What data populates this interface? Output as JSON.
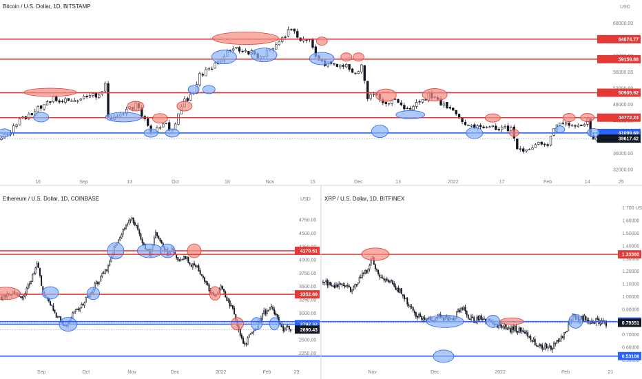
{
  "colors": {
    "resistance": "#e53935",
    "support": "#2962ff",
    "up": "#ffffff",
    "down": "#131722",
    "wick": "#131722",
    "grid": "#f0f3fa",
    "axis_text": "#787b86",
    "last_price": "#131722",
    "marker_red_fill": "#f28b82",
    "marker_blue_fill": "#8ab4f8"
  },
  "chart_data": [
    {
      "id": "btc",
      "type": "candlestick",
      "title": "Bitcoin / U.S. Dollar, 1D, BITSTAMP",
      "currency": "USD",
      "ylim": [
        31000,
        71000
      ],
      "x_days": 195,
      "x_ticks": [
        {
          "d": 12,
          "label": "16"
        },
        {
          "d": 27,
          "label": "Sep"
        },
        {
          "d": 42,
          "label": "13"
        },
        {
          "d": 57,
          "label": "Oct"
        },
        {
          "d": 74,
          "label": "18"
        },
        {
          "d": 88,
          "label": "Nov"
        },
        {
          "d": 102,
          "label": "15"
        },
        {
          "d": 117,
          "label": "Dec"
        },
        {
          "d": 130,
          "label": "13"
        },
        {
          "d": 148,
          "label": "2022"
        },
        {
          "d": 164,
          "label": "17"
        },
        {
          "d": 179,
          "label": "Feb"
        },
        {
          "d": 192,
          "label": "14"
        },
        {
          "d": 203,
          "label": "25"
        }
      ],
      "y_ticks": [
        "68000.00",
        "64000.00",
        "60000.00",
        "56000.00",
        "52000.00",
        "48000.00",
        "44000.00",
        "40000.00",
        "36000.00",
        "32000.00"
      ],
      "levels": [
        {
          "value": 64074.77,
          "label": "64074.77",
          "kind": "resistance"
        },
        {
          "value": 59159.88,
          "label": "59159.88",
          "kind": "resistance"
        },
        {
          "value": 50905.92,
          "label": "50905.92",
          "kind": "resistance"
        },
        {
          "value": 44772.24,
          "label": "44772.24",
          "kind": "resistance"
        },
        {
          "value": 41009.69,
          "label": "41009.69",
          "kind": "support"
        }
      ],
      "last_price": {
        "value": 39617.42,
        "label": "39617.42"
      },
      "anchors": [
        [
          0,
          39500
        ],
        [
          6,
          44000
        ],
        [
          12,
          47000
        ],
        [
          17,
          49700
        ],
        [
          22,
          48500
        ],
        [
          27,
          49800
        ],
        [
          31,
          50200
        ],
        [
          34,
          52500
        ],
        [
          35,
          44500
        ],
        [
          39,
          45300
        ],
        [
          44,
          47800
        ],
        [
          47,
          44000
        ],
        [
          49,
          40800
        ],
        [
          53,
          43500
        ],
        [
          56,
          41500
        ],
        [
          59,
          48000
        ],
        [
          63,
          51000
        ],
        [
          65,
          55000
        ],
        [
          70,
          57500
        ],
        [
          74,
          61500
        ],
        [
          77,
          62000
        ],
        [
          81,
          61000
        ],
        [
          84,
          60000
        ],
        [
          88,
          61000
        ],
        [
          92,
          64500
        ],
        [
          95,
          66500
        ],
        [
          98,
          64200
        ],
        [
          101,
          63600
        ],
        [
          104,
          58200
        ],
        [
          108,
          58000
        ],
        [
          112,
          58000
        ],
        [
          116,
          55800
        ],
        [
          118,
          57500
        ],
        [
          120,
          49300
        ],
        [
          122,
          50500
        ],
        [
          126,
          48500
        ],
        [
          129,
          49000
        ],
        [
          132,
          46500
        ],
        [
          136,
          48000
        ],
        [
          140,
          50500
        ],
        [
          145,
          47800
        ],
        [
          148,
          46500
        ],
        [
          152,
          42800
        ],
        [
          156,
          42200
        ],
        [
          160,
          43000
        ],
        [
          164,
          41800
        ],
        [
          167,
          42100
        ],
        [
          169,
          36800
        ],
        [
          172,
          37200
        ],
        [
          176,
          38500
        ],
        [
          179,
          38500
        ],
        [
          181,
          41500
        ],
        [
          184,
          44000
        ],
        [
          187,
          43000
        ],
        [
          189,
          42300
        ],
        [
          192,
          43900
        ],
        [
          193,
          40000
        ],
        [
          195,
          39617
        ]
      ],
      "markers": [
        {
          "d": 1,
          "v": 41009,
          "rx": 9,
          "ry": 6,
          "kind": "support"
        },
        {
          "d": 16,
          "v": 51000,
          "rx": 38,
          "ry": 6,
          "kind": "resistance"
        },
        {
          "d": 13,
          "v": 44900,
          "rx": 11,
          "ry": 7,
          "kind": "support"
        },
        {
          "d": 40,
          "v": 44900,
          "rx": 26,
          "ry": 7,
          "kind": "support"
        },
        {
          "d": 44,
          "v": 47600,
          "rx": 12,
          "ry": 7,
          "kind": "resistance"
        },
        {
          "d": 49,
          "v": 41000,
          "rx": 10,
          "ry": 6,
          "kind": "support"
        },
        {
          "d": 52,
          "v": 44600,
          "rx": 11,
          "ry": 7,
          "kind": "resistance"
        },
        {
          "d": 56,
          "v": 41000,
          "rx": 10,
          "ry": 6,
          "kind": "support"
        },
        {
          "d": 60,
          "v": 47600,
          "rx": 11,
          "ry": 7,
          "kind": "resistance"
        },
        {
          "d": 63,
          "v": 51700,
          "rx": 8,
          "ry": 6,
          "kind": "support"
        },
        {
          "d": 68,
          "v": 51700,
          "rx": 9,
          "ry": 6,
          "kind": "support"
        },
        {
          "d": 73,
          "v": 59700,
          "rx": 18,
          "ry": 10,
          "kind": "support"
        },
        {
          "d": 80,
          "v": 64300,
          "rx": 48,
          "ry": 9,
          "kind": "resistance"
        },
        {
          "d": 86,
          "v": 60200,
          "rx": 19,
          "ry": 10,
          "kind": "support"
        },
        {
          "d": 105,
          "v": 63600,
          "rx": 8,
          "ry": 6,
          "kind": "resistance"
        },
        {
          "d": 105,
          "v": 59300,
          "rx": 18,
          "ry": 9,
          "kind": "support"
        },
        {
          "d": 113,
          "v": 59700,
          "rx": 8,
          "ry": 6,
          "kind": "resistance"
        },
        {
          "d": 117,
          "v": 59700,
          "rx": 8,
          "ry": 6,
          "kind": "resistance"
        },
        {
          "d": 124,
          "v": 41400,
          "rx": 12,
          "ry": 9,
          "kind": "support"
        },
        {
          "d": 126,
          "v": 50300,
          "rx": 15,
          "ry": 9,
          "kind": "resistance"
        },
        {
          "d": 134,
          "v": 45500,
          "rx": 21,
          "ry": 6,
          "kind": "support"
        },
        {
          "d": 142,
          "v": 50400,
          "rx": 18,
          "ry": 9,
          "kind": "resistance"
        },
        {
          "d": 155,
          "v": 41000,
          "rx": 12,
          "ry": 8,
          "kind": "support"
        },
        {
          "d": 161,
          "v": 44700,
          "rx": 11,
          "ry": 6,
          "kind": "resistance"
        },
        {
          "d": 168,
          "v": 41000,
          "rx": 7,
          "ry": 5,
          "kind": "resistance"
        },
        {
          "d": 183,
          "v": 41900,
          "rx": 7,
          "ry": 5,
          "kind": "support"
        },
        {
          "d": 186,
          "v": 44800,
          "rx": 9,
          "ry": 6,
          "kind": "resistance"
        },
        {
          "d": 192,
          "v": 44800,
          "rx": 10,
          "ry": 6,
          "kind": "resistance"
        },
        {
          "d": 194,
          "v": 41100,
          "rx": 9,
          "ry": 6,
          "kind": "support"
        }
      ]
    },
    {
      "id": "eth",
      "type": "candlestick",
      "title": "Ethereum / U.S. Dollar, 1D, COINBASE",
      "currency": "USD",
      "ylim": [
        2150,
        5050
      ],
      "x_days": 195,
      "x_ticks": [
        {
          "d": 27,
          "label": "Sep"
        },
        {
          "d": 57,
          "label": "Oct"
        },
        {
          "d": 88,
          "label": "Nov"
        },
        {
          "d": 117,
          "label": "Dec"
        },
        {
          "d": 148,
          "label": "2022"
        },
        {
          "d": 179,
          "label": "Feb"
        },
        {
          "d": 199,
          "label": "23"
        }
      ],
      "y_ticks": [
        "4750.00",
        "4500.00",
        "4250.00",
        "4000.00",
        "3750.00",
        "3500.00",
        "3250.00",
        "3000.00",
        "2750.00",
        "2500.00",
        "2250.00"
      ],
      "levels": [
        {
          "value": 4170.51,
          "label": "4170.51",
          "kind": "resistance"
        },
        {
          "value": 3352.69,
          "label": "3352.69",
          "kind": "resistance"
        },
        {
          "value": 2792.32,
          "label": "2792.32",
          "kind": "support"
        }
      ],
      "last_price": {
        "value": 2690.43,
        "label": "2690.43"
      },
      "anchors": [
        [
          0,
          3300
        ],
        [
          8,
          3400
        ],
        [
          14,
          3300
        ],
        [
          20,
          3600
        ],
        [
          24,
          3950
        ],
        [
          28,
          3400
        ],
        [
          32,
          3200
        ],
        [
          36,
          3000
        ],
        [
          40,
          2850
        ],
        [
          44,
          2750
        ],
        [
          48,
          3000
        ],
        [
          52,
          3100
        ],
        [
          56,
          3200
        ],
        [
          60,
          3400
        ],
        [
          64,
          3550
        ],
        [
          68,
          3700
        ],
        [
          72,
          3900
        ],
        [
          76,
          4200
        ],
        [
          80,
          4450
        ],
        [
          84,
          4650
        ],
        [
          88,
          4800
        ],
        [
          92,
          4550
        ],
        [
          96,
          4300
        ],
        [
          100,
          4100
        ],
        [
          104,
          4500
        ],
        [
          108,
          4300
        ],
        [
          112,
          4100
        ],
        [
          116,
          4200
        ],
        [
          120,
          3950
        ],
        [
          124,
          4050
        ],
        [
          128,
          3900
        ],
        [
          132,
          3850
        ],
        [
          136,
          3700
        ],
        [
          140,
          3450
        ],
        [
          144,
          3300
        ],
        [
          148,
          3550
        ],
        [
          152,
          3250
        ],
        [
          156,
          3100
        ],
        [
          160,
          2700
        ],
        [
          163,
          2400
        ],
        [
          166,
          2500
        ],
        [
          170,
          2650
        ],
        [
          173,
          2800
        ],
        [
          176,
          3000
        ],
        [
          179,
          3050
        ],
        [
          182,
          3100
        ],
        [
          186,
          2900
        ],
        [
          190,
          2650
        ],
        [
          193,
          2720
        ],
        [
          195,
          2690
        ]
      ],
      "markers": [
        {
          "d": 3,
          "v": 3370,
          "rx": 21,
          "ry": 9,
          "kind": "resistance"
        },
        {
          "d": 33,
          "v": 3380,
          "rx": 12,
          "ry": 9,
          "kind": "support"
        },
        {
          "d": 45,
          "v": 2790,
          "rx": 13,
          "ry": 10,
          "kind": "support"
        },
        {
          "d": 62,
          "v": 3370,
          "rx": 9,
          "ry": 9,
          "kind": "support"
        },
        {
          "d": 77,
          "v": 4170,
          "rx": 12,
          "ry": 12,
          "kind": "support"
        },
        {
          "d": 100,
          "v": 4170,
          "rx": 18,
          "ry": 10,
          "kind": "support"
        },
        {
          "d": 112,
          "v": 4170,
          "rx": 11,
          "ry": 10,
          "kind": "support"
        },
        {
          "d": 130,
          "v": 4170,
          "rx": 10,
          "ry": 10,
          "kind": "resistance"
        },
        {
          "d": 144,
          "v": 3370,
          "rx": 8,
          "ry": 10,
          "kind": "resistance"
        },
        {
          "d": 159,
          "v": 2800,
          "rx": 9,
          "ry": 9,
          "kind": "resistance"
        },
        {
          "d": 172,
          "v": 2800,
          "rx": 8,
          "ry": 9,
          "kind": "support"
        },
        {
          "d": 184,
          "v": 2800,
          "rx": 7,
          "ry": 9,
          "kind": "support"
        }
      ]
    },
    {
      "id": "xrp",
      "type": "candlestick",
      "title": "XRP / U.S. Dollar, 1D, BITFINEX",
      "currency": "USD",
      "ylim": [
        0.47,
        1.78
      ],
      "x_days": 195,
      "x_ticks": [
        {
          "d": 34,
          "label": "Nov"
        },
        {
          "d": 77,
          "label": "Dec"
        },
        {
          "d": 122,
          "label": "2022"
        },
        {
          "d": 167,
          "label": "Feb"
        },
        {
          "d": 198,
          "label": "21"
        }
      ],
      "y_ticks": [
        "1.70000",
        "1.60000",
        "1.50000",
        "1.40000",
        "1.30000",
        "1.20000",
        "1.10000",
        "1.00000",
        "0.90000",
        "0.80000",
        "0.70000",
        "0.60000",
        "0.50000"
      ],
      "y_ticks_first_label": "1.700 USD",
      "levels": [
        {
          "value": 1.3336,
          "label": "1.33360",
          "kind": "resistance"
        },
        {
          "value": 0.8033,
          "label": "0.80330",
          "kind": "support"
        },
        {
          "value": 0.53108,
          "label": "0.53108",
          "kind": "support"
        }
      ],
      "last_price": {
        "value": 0.79351,
        "label": "0.79351"
      },
      "anchors": [
        [
          0,
          1.12
        ],
        [
          5,
          1.1
        ],
        [
          10,
          1.08
        ],
        [
          15,
          1.1
        ],
        [
          20,
          1.05
        ],
        [
          25,
          1.15
        ],
        [
          30,
          1.2
        ],
        [
          34,
          1.3
        ],
        [
          38,
          1.18
        ],
        [
          42,
          1.14
        ],
        [
          47,
          1.12
        ],
        [
          52,
          1.05
        ],
        [
          56,
          1.0
        ],
        [
          60,
          0.92
        ],
        [
          64,
          0.85
        ],
        [
          68,
          0.83
        ],
        [
          72,
          0.82
        ],
        [
          76,
          0.8
        ],
        [
          80,
          0.84
        ],
        [
          84,
          0.82
        ],
        [
          88,
          0.81
        ],
        [
          92,
          0.86
        ],
        [
          96,
          0.92
        ],
        [
          100,
          0.85
        ],
        [
          104,
          0.8
        ],
        [
          108,
          0.84
        ],
        [
          112,
          0.8
        ],
        [
          116,
          0.8
        ],
        [
          120,
          0.76
        ],
        [
          124,
          0.78
        ],
        [
          128,
          0.74
        ],
        [
          132,
          0.75
        ],
        [
          136,
          0.73
        ],
        [
          140,
          0.72
        ],
        [
          144,
          0.66
        ],
        [
          148,
          0.6
        ],
        [
          152,
          0.61
        ],
        [
          156,
          0.6
        ],
        [
          160,
          0.62
        ],
        [
          164,
          0.68
        ],
        [
          168,
          0.75
        ],
        [
          172,
          0.85
        ],
        [
          176,
          0.82
        ],
        [
          180,
          0.83
        ],
        [
          184,
          0.78
        ],
        [
          188,
          0.82
        ],
        [
          192,
          0.8
        ],
        [
          195,
          0.79
        ]
      ],
      "markers": [
        {
          "d": 36,
          "v": 1.335,
          "rx": 20,
          "ry": 9,
          "kind": "resistance"
        },
        {
          "d": 84,
          "v": 0.805,
          "rx": 27,
          "ry": 9,
          "kind": "support"
        },
        {
          "d": 83,
          "v": 0.53,
          "rx": 15,
          "ry": 9,
          "kind": "support"
        },
        {
          "d": 117,
          "v": 0.805,
          "rx": 10,
          "ry": 9,
          "kind": "support"
        },
        {
          "d": 130,
          "v": 0.805,
          "rx": 17,
          "ry": 5,
          "kind": "resistance"
        },
        {
          "d": 174,
          "v": 0.805,
          "rx": 10,
          "ry": 10,
          "kind": "support"
        }
      ]
    }
  ]
}
